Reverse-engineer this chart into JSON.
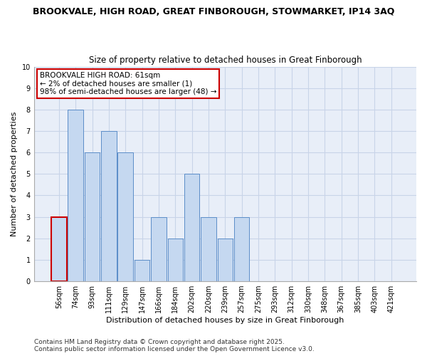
{
  "title_line1": "BROOKVALE, HIGH ROAD, GREAT FINBOROUGH, STOWMARKET, IP14 3AQ",
  "title_line2": "Size of property relative to detached houses in Great Finborough",
  "xlabel": "Distribution of detached houses by size in Great Finborough",
  "ylabel": "Number of detached properties",
  "categories": [
    "56sqm",
    "74sqm",
    "93sqm",
    "111sqm",
    "129sqm",
    "147sqm",
    "166sqm",
    "184sqm",
    "202sqm",
    "220sqm",
    "239sqm",
    "257sqm",
    "275sqm",
    "293sqm",
    "312sqm",
    "330sqm",
    "348sqm",
    "367sqm",
    "385sqm",
    "403sqm",
    "421sqm"
  ],
  "values": [
    3,
    8,
    6,
    7,
    6,
    1,
    3,
    2,
    5,
    3,
    2,
    3,
    0,
    0,
    0,
    0,
    0,
    0,
    0,
    0,
    0
  ],
  "bar_color": "#c5d8f0",
  "bar_edge_color": "#5b8dc8",
  "highlight_bar_index": 0,
  "highlight_edge_color": "#cc0000",
  "annotation_text": "BROOKVALE HIGH ROAD: 61sqm\n← 2% of detached houses are smaller (1)\n98% of semi-detached houses are larger (48) →",
  "annotation_box_edge_color": "#cc0000",
  "ylim": [
    0,
    10
  ],
  "yticks": [
    0,
    1,
    2,
    3,
    4,
    5,
    6,
    7,
    8,
    9,
    10
  ],
  "grid_color": "#c8d4e8",
  "bg_color": "#e8eef8",
  "footer_text": "Contains HM Land Registry data © Crown copyright and database right 2025.\nContains public sector information licensed under the Open Government Licence v3.0.",
  "title1_fontsize": 9,
  "title2_fontsize": 8.5,
  "axis_label_fontsize": 8,
  "tick_fontsize": 7,
  "footer_fontsize": 6.5,
  "annotation_fontsize": 7.5
}
